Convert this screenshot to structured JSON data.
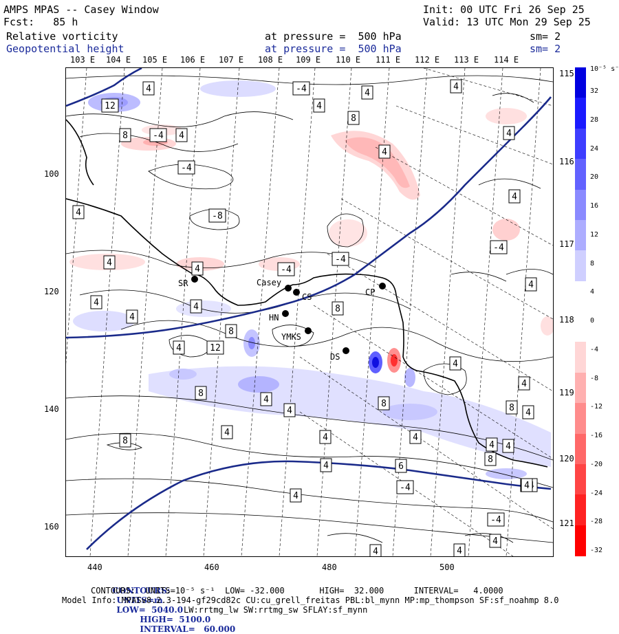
{
  "header": {
    "title": "AMPS MPAS -- Casey Window",
    "init": "Init: 00 UTC Fri 26 Sep 25",
    "forecast": "Fcst:   85 h",
    "valid": "Valid: 13 UTC Mon 29 Sep 25",
    "field1": "Relative vorticity",
    "field1_level": "at pressure =  500 hPa",
    "field1_sm": "sm= 2",
    "field2": "Geopotential height",
    "field2_level": "at pressure =  500 hPa",
    "field2_sm": "sm= 2"
  },
  "top_lon_labels": [
    "103 E",
    "104 E",
    "105 E",
    "106 E",
    "107 E",
    "108 E",
    "109 E",
    "110 E",
    "111 E",
    "112 E",
    "113 E",
    "114 E"
  ],
  "right_lon_labels": [
    "115 E",
    "116 E",
    "117 E",
    "118 E",
    "119 E",
    "120 E",
    "121 E"
  ],
  "x_ticks": [
    "440",
    "460",
    "480",
    "500"
  ],
  "y_ticks": [
    "100",
    "120",
    "140",
    "160"
  ],
  "stations": [
    "SR",
    "Casey",
    "CS",
    "HN",
    "YMKS",
    "DS",
    "CP"
  ],
  "contour_labels": [
    "12",
    "4",
    "8",
    "-4",
    "4",
    "-4",
    "4",
    "-8",
    "-4",
    "4",
    "4",
    "8",
    "4",
    "4",
    "4",
    "4",
    "-4",
    "4",
    "-4",
    "-4",
    "4",
    "4",
    "4",
    "4",
    "8",
    "4",
    "8",
    "4",
    "12",
    "8",
    "4",
    "8",
    "4",
    "4",
    "4",
    "8",
    "4",
    "4",
    "8",
    "4",
    "6",
    "4",
    "4",
    "8",
    "4",
    "4",
    "-4",
    "-4",
    "-4",
    "4",
    "4",
    "4",
    "4",
    "4"
  ],
  "colorbar": {
    "unit_label": "10⁻⁵ s⁻¹",
    "labels": [
      "32",
      "28",
      "24",
      "20",
      "16",
      "12",
      "8",
      "4",
      "0",
      "-4",
      "-8",
      "-12",
      "-16",
      "-20",
      "-24",
      "-28",
      "-32"
    ],
    "colors": [
      "#0000e0",
      "#1a1aff",
      "#3d3dff",
      "#6262ff",
      "#8a8aff",
      "#adadff",
      "#cfcfff",
      "#ffffff",
      "#ffffff",
      "#ffd6d6",
      "#ffb0b0",
      "#ff8c8c",
      "#ff6868",
      "#ff4545",
      "#ff2222",
      "#ff0000"
    ]
  },
  "footer": {
    "line1": {
      "contours": "CONTOURS:",
      "units": "UNITS=m",
      "low": "LOW=  5040.0",
      "high": "HIGH=  5100.0",
      "interval": "INTERVAL=   60.000"
    },
    "line2": "CONTOURS:  UNITS=10⁻⁵ s⁻¹  LOW= -32.000       HIGH=  32.000      INTERVAL=   4.0000",
    "line3": "Model Info: MPASv8.2.3-194-gf29cd82c CU:cu_grell_freitas PBL:bl_mynn MP:mp_thompson SF:sf_noahmp 8.0",
    "line4": "LW:rrtmg_lw SW:rrtmg_sw SFLAY:sf_mynn"
  },
  "colors": {
    "height_contour": "#1a2a8a",
    "coast": "#000000",
    "grid": "#000000"
  }
}
